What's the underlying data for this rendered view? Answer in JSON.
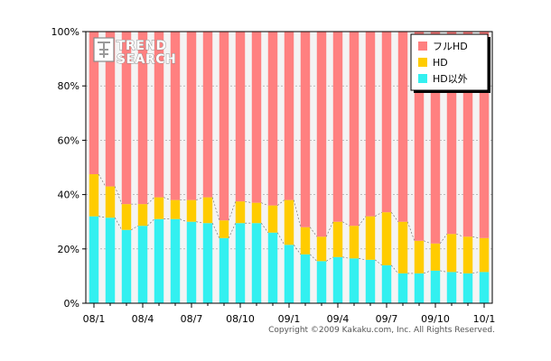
{
  "chart_data": {
    "type": "bar",
    "stacked": true,
    "percent": true,
    "categories": [
      "08/1",
      "08/2",
      "08/3",
      "08/4",
      "08/5",
      "08/6",
      "08/7",
      "08/8",
      "08/9",
      "08/10",
      "08/11",
      "08/12",
      "09/1",
      "09/2",
      "09/3",
      "09/4",
      "09/5",
      "09/6",
      "09/7",
      "09/8",
      "09/9",
      "09/10",
      "09/11",
      "09/12",
      "10/1"
    ],
    "x_tick_labels": [
      "08/1",
      "08/4",
      "08/7",
      "08/10",
      "09/1",
      "09/4",
      "09/7",
      "09/10",
      "10/1"
    ],
    "x_tick_every": 3,
    "series": [
      {
        "name": "HD以外",
        "color": "#33f0f0",
        "values": [
          32,
          31.5,
          27,
          28.5,
          31,
          31,
          30,
          29.5,
          24,
          29.5,
          29.5,
          26,
          21.5,
          18,
          15.5,
          17,
          16.5,
          16,
          14,
          11,
          11,
          12,
          11.5,
          11,
          11.5
        ]
      },
      {
        "name": "HD",
        "color": "#ffcc00",
        "values": [
          15.5,
          11.5,
          9.5,
          8,
          8,
          7,
          8,
          9.5,
          6.5,
          8,
          7.5,
          10,
          16.5,
          10,
          9,
          13,
          12,
          16,
          19.5,
          19,
          12,
          10,
          14,
          13.5,
          12.5
        ]
      },
      {
        "name": "フルHD",
        "color": "#ff8080",
        "values": [
          52.5,
          57,
          63.5,
          63.5,
          61,
          62,
          62,
          61,
          69.5,
          62.5,
          63,
          64,
          62,
          72,
          75.5,
          70,
          71.5,
          68,
          66.5,
          70,
          77,
          78,
          74.5,
          75.5,
          76
        ]
      }
    ],
    "ylim": [
      0,
      100
    ],
    "y_ticks": [
      "0%",
      "20%",
      "40%",
      "60%",
      "80%",
      "100%"
    ],
    "grid": true,
    "legend_position": "top-right",
    "legend_order": [
      "フルHD",
      "HD",
      "HD以外"
    ]
  },
  "logo": {
    "line1": "TREND",
    "line2": "SEARCH"
  },
  "copyright": "Copyright ©2009 Kakaku.com, Inc. All Rights Reserved."
}
